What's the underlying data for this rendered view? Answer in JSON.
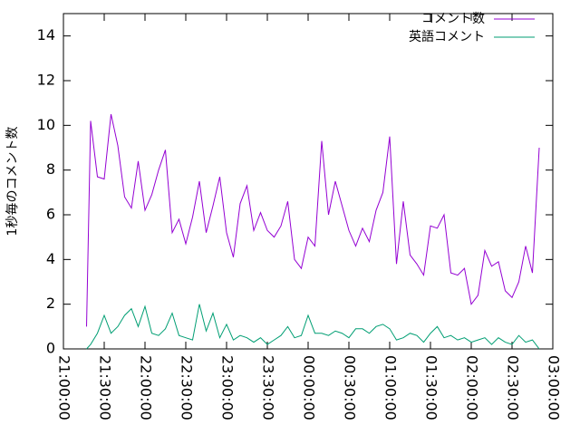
{
  "chart_data": {
    "type": "line",
    "ylabel": "1秒毎のコメント数",
    "x": [
      "21:17:00",
      "21:20:00",
      "21:25:00",
      "21:30:00",
      "21:35:00",
      "21:40:00",
      "21:45:00",
      "21:50:00",
      "21:55:00",
      "22:00:00",
      "22:05:00",
      "22:10:00",
      "22:15:00",
      "22:20:00",
      "22:25:00",
      "22:30:00",
      "22:35:00",
      "22:40:00",
      "22:45:00",
      "22:50:00",
      "22:55:00",
      "23:00:00",
      "23:05:00",
      "23:10:00",
      "23:15:00",
      "23:20:00",
      "23:25:00",
      "23:30:00",
      "23:35:00",
      "23:40:00",
      "23:45:00",
      "23:50:00",
      "23:55:00",
      "00:00:00",
      "00:05:00",
      "00:10:00",
      "00:15:00",
      "00:20:00",
      "00:25:00",
      "00:30:00",
      "00:35:00",
      "00:40:00",
      "00:45:00",
      "00:50:00",
      "00:55:00",
      "01:00:00",
      "01:05:00",
      "01:10:00",
      "01:15:00",
      "01:20:00",
      "01:25:00",
      "01:30:00",
      "01:35:00",
      "01:40:00",
      "01:45:00",
      "01:50:00",
      "01:55:00",
      "02:00:00",
      "02:05:00",
      "02:10:00",
      "02:15:00",
      "02:20:00",
      "02:25:00",
      "02:30:00",
      "02:35:00",
      "02:40:00",
      "02:45:00",
      "02:50:00"
    ],
    "series": [
      {
        "name": "コメント数",
        "color": "#9400d3",
        "values": [
          1.0,
          10.2,
          7.7,
          7.6,
          10.5,
          9.1,
          6.8,
          6.3,
          8.4,
          6.2,
          6.9,
          8.0,
          8.9,
          5.2,
          5.8,
          4.7,
          5.9,
          7.5,
          5.2,
          6.4,
          7.7,
          5.2,
          4.1,
          6.5,
          7.3,
          5.3,
          6.1,
          5.3,
          5.0,
          5.5,
          6.6,
          4.0,
          3.6,
          5.0,
          4.6,
          9.3,
          6.0,
          7.5,
          6.4,
          5.3,
          4.6,
          5.4,
          4.8,
          6.2,
          7.0,
          9.5,
          3.8,
          6.6,
          4.2,
          3.8,
          3.3,
          5.5,
          5.4,
          6.0,
          3.4,
          3.3,
          3.6,
          2.0,
          2.4,
          4.4,
          3.7,
          3.9,
          2.6,
          2.3,
          3.0,
          4.6,
          3.4,
          9.0
        ]
      },
      {
        "name": "英語コメント",
        "color": "#009e73",
        "values": [
          0,
          0.2,
          0.7,
          1.5,
          0.7,
          1.0,
          1.5,
          1.8,
          1.0,
          1.9,
          0.7,
          0.6,
          0.9,
          1.6,
          0.6,
          0.5,
          0.4,
          2.0,
          0.8,
          1.6,
          0.5,
          1.1,
          0.4,
          0.6,
          0.5,
          0.3,
          0.5,
          0.2,
          0.4,
          0.6,
          1.0,
          0.5,
          0.6,
          1.5,
          0.7,
          0.7,
          0.6,
          0.8,
          0.7,
          0.5,
          0.9,
          0.9,
          0.7,
          1.0,
          1.1,
          0.9,
          0.4,
          0.5,
          0.7,
          0.6,
          0.3,
          0.7,
          1.0,
          0.5,
          0.6,
          0.4,
          0.5,
          0.3,
          0.4,
          0.5,
          0.2,
          0.5,
          0.3,
          0.2,
          0.6,
          0.3,
          0.4,
          0.0
        ]
      }
    ],
    "xlim": [
      "21:00:00",
      "03:00:00"
    ],
    "xticks": [
      "21:00:00",
      "21:30:00",
      "22:00:00",
      "22:30:00",
      "23:00:00",
      "23:30:00",
      "00:00:00",
      "00:30:00",
      "01:00:00",
      "01:30:00",
      "02:00:00",
      "02:30:00",
      "03:00:00"
    ],
    "ylim": [
      0,
      15
    ],
    "yticks": [
      0,
      2,
      4,
      6,
      8,
      10,
      12,
      14
    ],
    "legend": "top-right"
  }
}
